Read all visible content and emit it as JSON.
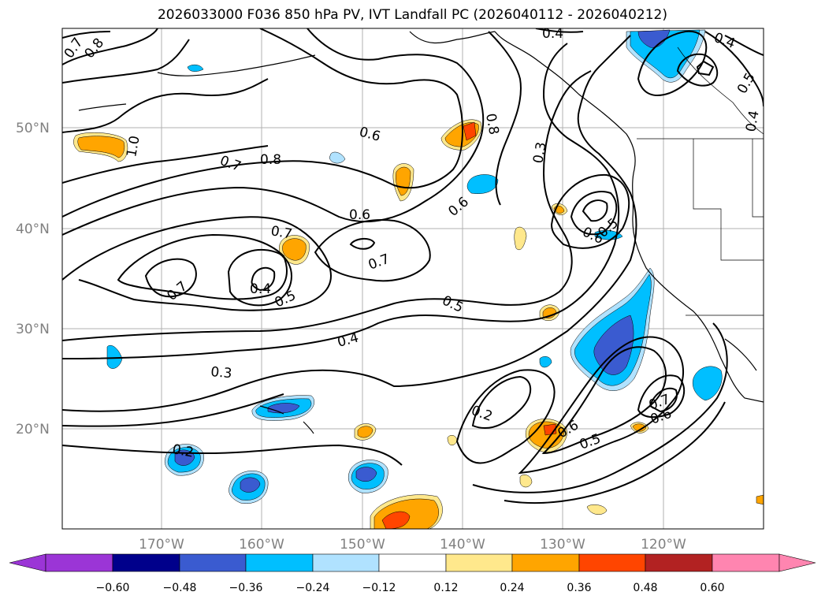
{
  "title": "2026033000 F036 850 hPa PV, IVT Landfall PC (2026040112 - 2026040212)",
  "map": {
    "lat_labels": [
      "50°N",
      "40°N",
      "30°N",
      "20°N"
    ],
    "lon_labels": [
      "170°W",
      "160°W",
      "150°W",
      "140°W",
      "130°W",
      "120°W"
    ],
    "contour_labels": [
      "0.7",
      "0.8",
      "0.4",
      "0.4",
      "0.5",
      "0.4",
      "0.6",
      "0.8",
      "1.0",
      "0.7",
      "0.8",
      "0.3",
      "0.6",
      "0.6",
      "0.7",
      "0.7",
      "0.7",
      "0.4",
      "0.5",
      "0.5",
      "0.6",
      "0.5",
      "0.4",
      "0.3",
      "0.2",
      "0.2",
      "0.6",
      "0.5",
      "0.7",
      "0.6"
    ]
  },
  "colorbar": {
    "levels": [
      "−0.60",
      "−0.48",
      "−0.36",
      "−0.24",
      "−0.12",
      "0.12",
      "0.24",
      "0.36",
      "0.48",
      "0.60"
    ],
    "colors": [
      "#9b35d6",
      "#00008b",
      "#3a5bd0",
      "#00bfff",
      "#b0e2ff",
      "#ffffff",
      "#ffe88c",
      "#ffa500",
      "#ff4500",
      "#b22222",
      "#ff85b0"
    ]
  }
}
